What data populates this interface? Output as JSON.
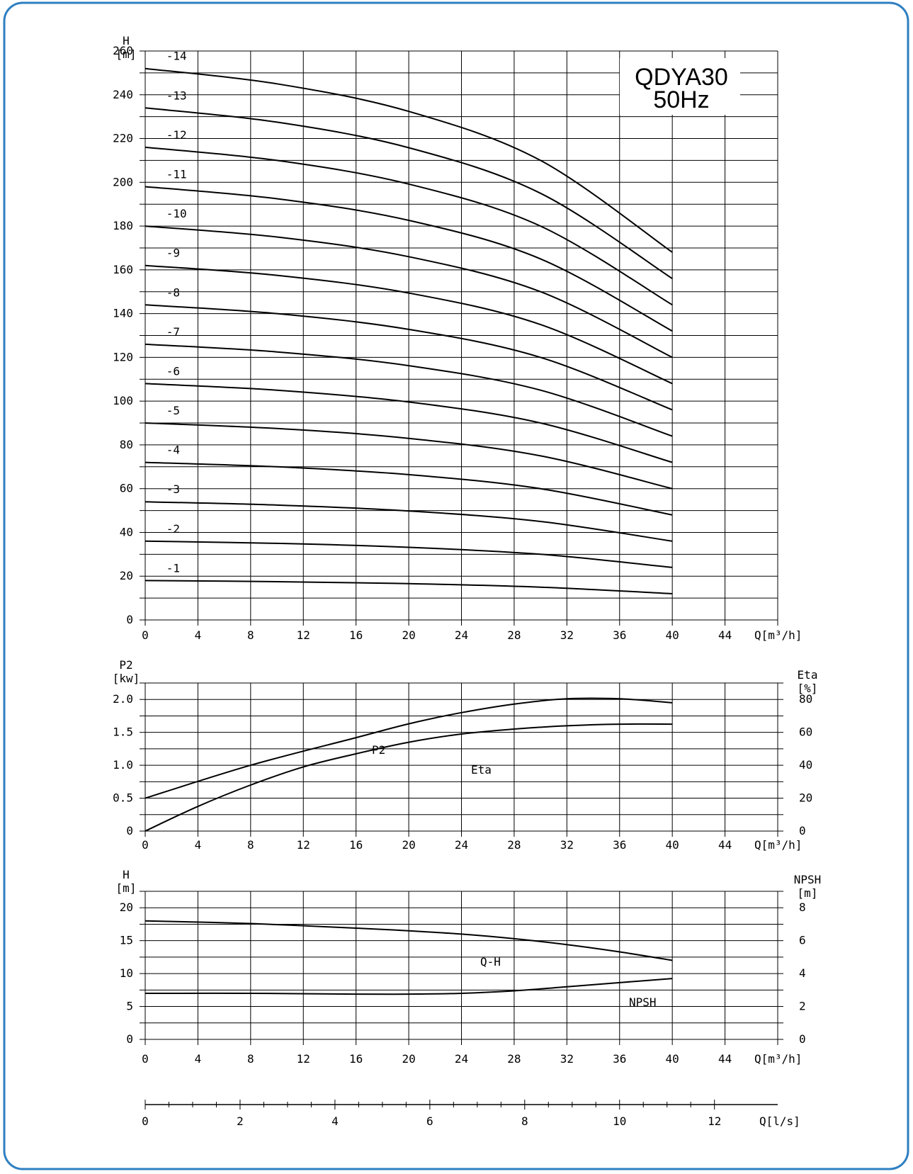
{
  "chart_data": [
    {
      "type": "line",
      "title": "QDYA30",
      "subtitle": "50Hz",
      "xlabel": "Q[m³/h]",
      "ylabel_top": "H",
      "ylabel_unit": "[m]",
      "x_ticks": [
        0,
        4,
        8,
        12,
        16,
        20,
        24,
        28,
        32,
        36,
        40,
        44
      ],
      "y_ticks": [
        0,
        20,
        40,
        60,
        80,
        100,
        120,
        140,
        160,
        180,
        200,
        220,
        240,
        260
      ],
      "xlim": [
        0,
        48
      ],
      "ylim": [
        0,
        260
      ],
      "grid": true,
      "series": [
        {
          "name": "-1",
          "x": [
            0,
            10,
            20,
            30,
            40
          ],
          "y": [
            18,
            17.5,
            16.6,
            15.0,
            12
          ]
        },
        {
          "name": "-2",
          "x": [
            0,
            10,
            20,
            30,
            40
          ],
          "y": [
            36,
            35.0,
            33.2,
            30.0,
            24
          ]
        },
        {
          "name": "-3",
          "x": [
            0,
            10,
            20,
            30,
            40
          ],
          "y": [
            54,
            52.5,
            49.8,
            45.0,
            36
          ]
        },
        {
          "name": "-4",
          "x": [
            0,
            10,
            20,
            30,
            40
          ],
          "y": [
            72,
            70.0,
            66.4,
            60.0,
            48
          ]
        },
        {
          "name": "-5",
          "x": [
            0,
            10,
            20,
            30,
            40
          ],
          "y": [
            90,
            87.5,
            83.0,
            75.0,
            60
          ]
        },
        {
          "name": "-6",
          "x": [
            0,
            10,
            20,
            30,
            40
          ],
          "y": [
            108,
            105.0,
            99.6,
            90.0,
            72
          ]
        },
        {
          "name": "-7",
          "x": [
            0,
            10,
            20,
            30,
            40
          ],
          "y": [
            126,
            122.5,
            116.2,
            105.0,
            84
          ]
        },
        {
          "name": "-8",
          "x": [
            0,
            10,
            20,
            30,
            40
          ],
          "y": [
            144,
            140.0,
            132.8,
            120.0,
            96
          ]
        },
        {
          "name": "-9",
          "x": [
            0,
            10,
            20,
            30,
            40
          ],
          "y": [
            162,
            157.5,
            149.4,
            135.0,
            108
          ]
        },
        {
          "name": "-10",
          "x": [
            0,
            10,
            20,
            30,
            40
          ],
          "y": [
            180,
            175.0,
            166.0,
            150.0,
            120
          ]
        },
        {
          "name": "-11",
          "x": [
            0,
            10,
            20,
            30,
            40
          ],
          "y": [
            198,
            192.5,
            182.6,
            165.0,
            132
          ]
        },
        {
          "name": "-12",
          "x": [
            0,
            10,
            20,
            30,
            40
          ],
          "y": [
            216,
            210.0,
            199.2,
            180.0,
            144
          ]
        },
        {
          "name": "-13",
          "x": [
            0,
            10,
            20,
            30,
            40
          ],
          "y": [
            234,
            227.5,
            215.8,
            195.0,
            156
          ]
        },
        {
          "name": "-14",
          "x": [
            0,
            10,
            20,
            30,
            40
          ],
          "y": [
            252,
            245.0,
            232.4,
            210.0,
            168
          ]
        }
      ]
    },
    {
      "type": "line",
      "xlabel": "Q[m³/h]",
      "ylabel_left": "P2",
      "ylabel_left_unit": "[kw]",
      "ylabel_right": "Eta",
      "ylabel_right_unit": "[%]",
      "x_ticks": [
        0,
        4,
        8,
        12,
        16,
        20,
        24,
        28,
        32,
        36,
        40,
        44
      ],
      "y_left_ticks": [
        "0",
        "0.5",
        "1.0",
        "1.5",
        "2.0"
      ],
      "y_right_ticks": [
        "0",
        "20",
        "40",
        "60",
        "80"
      ],
      "xlim": [
        0,
        48
      ],
      "ylim_left": [
        0,
        2.25
      ],
      "ylim_right": [
        0,
        90
      ],
      "grid": true,
      "series": [
        {
          "name": "P2",
          "axis": "left",
          "x": [
            0,
            8,
            16,
            20,
            24,
            28,
            32,
            36,
            40
          ],
          "y": [
            0.5,
            1.0,
            1.42,
            1.63,
            1.8,
            1.93,
            2.01,
            2.01,
            1.95
          ]
        },
        {
          "name": "Eta",
          "axis": "right",
          "x": [
            0,
            4,
            8,
            12,
            16,
            20,
            24,
            28,
            32,
            36,
            40
          ],
          "y": [
            0,
            15,
            28,
            39,
            47,
            54,
            59,
            62,
            64,
            65,
            65
          ]
        }
      ]
    },
    {
      "type": "line",
      "xlabel": "Q[m³/h]",
      "xlabel_secondary": "Q[l/s]",
      "ylabel_left": "H",
      "ylabel_left_unit": "[m]",
      "ylabel_right": "NPSH",
      "ylabel_right_unit": "[m]",
      "x_ticks": [
        0,
        4,
        8,
        12,
        16,
        20,
        24,
        28,
        32,
        36,
        40,
        44
      ],
      "x2_ticks": [
        0,
        2,
        4,
        6,
        8,
        10,
        12
      ],
      "y_left_ticks": [
        "0",
        "5",
        "10",
        "15",
        "20"
      ],
      "y_right_ticks": [
        "0",
        "2",
        "4",
        "6",
        "8"
      ],
      "xlim": [
        0,
        48
      ],
      "ylim_left": [
        0,
        22.5
      ],
      "ylim_right": [
        0,
        9
      ],
      "grid": true,
      "series": [
        {
          "name": "Q-H",
          "axis": "left",
          "x": [
            0,
            8,
            16,
            20,
            24,
            28,
            32,
            36,
            40
          ],
          "y": [
            18,
            17.6,
            16.9,
            16.5,
            16.0,
            15.3,
            14.4,
            13.3,
            12.0
          ]
        },
        {
          "name": "NPSH",
          "axis": "right",
          "x": [
            0,
            8,
            16,
            20,
            24,
            28,
            32,
            36,
            40
          ],
          "y": [
            2.8,
            2.8,
            2.75,
            2.75,
            2.8,
            2.95,
            3.2,
            3.45,
            3.7
          ]
        }
      ]
    }
  ]
}
